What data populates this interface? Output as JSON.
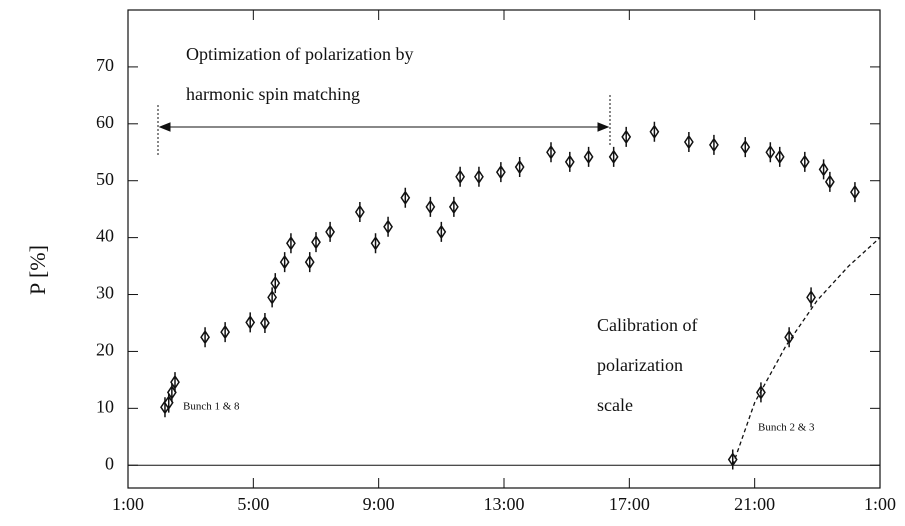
{
  "chart_data": {
    "type": "scatter",
    "ylabel": "P [%]",
    "annotations": [
      "Optimization of polarization by",
      "harmonic spin matching",
      "Calibration of",
      "polarization",
      "scale",
      "Bunch 1 & 8",
      "Bunch 2 & 3"
    ],
    "xlim": [
      1,
      25
    ],
    "ylim": [
      -4,
      80
    ],
    "xticks": [
      {
        "value": 1,
        "label": "1:00"
      },
      {
        "value": 5,
        "label": "5:00"
      },
      {
        "value": 9,
        "label": "9:00"
      },
      {
        "value": 13,
        "label": "13:00"
      },
      {
        "value": 17,
        "label": "17:00"
      },
      {
        "value": 21,
        "label": "21:00"
      },
      {
        "value": 25,
        "label": "1:00"
      }
    ],
    "yticks": [
      0,
      10,
      20,
      30,
      40,
      50,
      60,
      70
    ],
    "reference_line": 0,
    "color": "#111111",
    "series": [
      {
        "x": [
          2.18,
          2.3,
          2.4,
          2.5,
          3.46,
          4.1,
          4.9,
          5.37,
          5.6,
          5.7,
          6.0,
          6.2,
          6.8,
          7.0,
          7.45,
          8.4,
          8.9,
          9.3,
          9.85,
          10.65,
          11.0,
          11.4,
          11.6,
          12.2,
          12.9,
          13.5,
          14.5,
          15.1,
          15.7,
          16.5,
          16.9,
          17.8,
          18.9,
          19.7,
          20.7,
          21.5,
          21.8,
          22.6,
          23.2,
          23.4,
          24.2
        ],
        "values": [
          10.2,
          11,
          12.8,
          14.6,
          22.5,
          23.4,
          25.1,
          25,
          29.5,
          32,
          35.7,
          39,
          35.7,
          39.2,
          41,
          44.5,
          39,
          41.9,
          47,
          45.4,
          41,
          45.4,
          50.7,
          50.7,
          51.5,
          52.4,
          55,
          53.3,
          54.2,
          54.2,
          57.7,
          58.6,
          56.8,
          56.3,
          55.9,
          55,
          54.2,
          53.3,
          52,
          49.8,
          48
        ]
      },
      {
        "x": [
          20.3,
          21.2,
          22.1,
          22.8
        ],
        "values": [
          1,
          12.8,
          22.5,
          29.5
        ]
      },
      {
        "x": [
          20.3,
          21,
          22,
          23,
          24,
          25
        ],
        "values": [
          0,
          11,
          21,
          29,
          35,
          40
        ],
        "style": "dashed"
      }
    ]
  }
}
